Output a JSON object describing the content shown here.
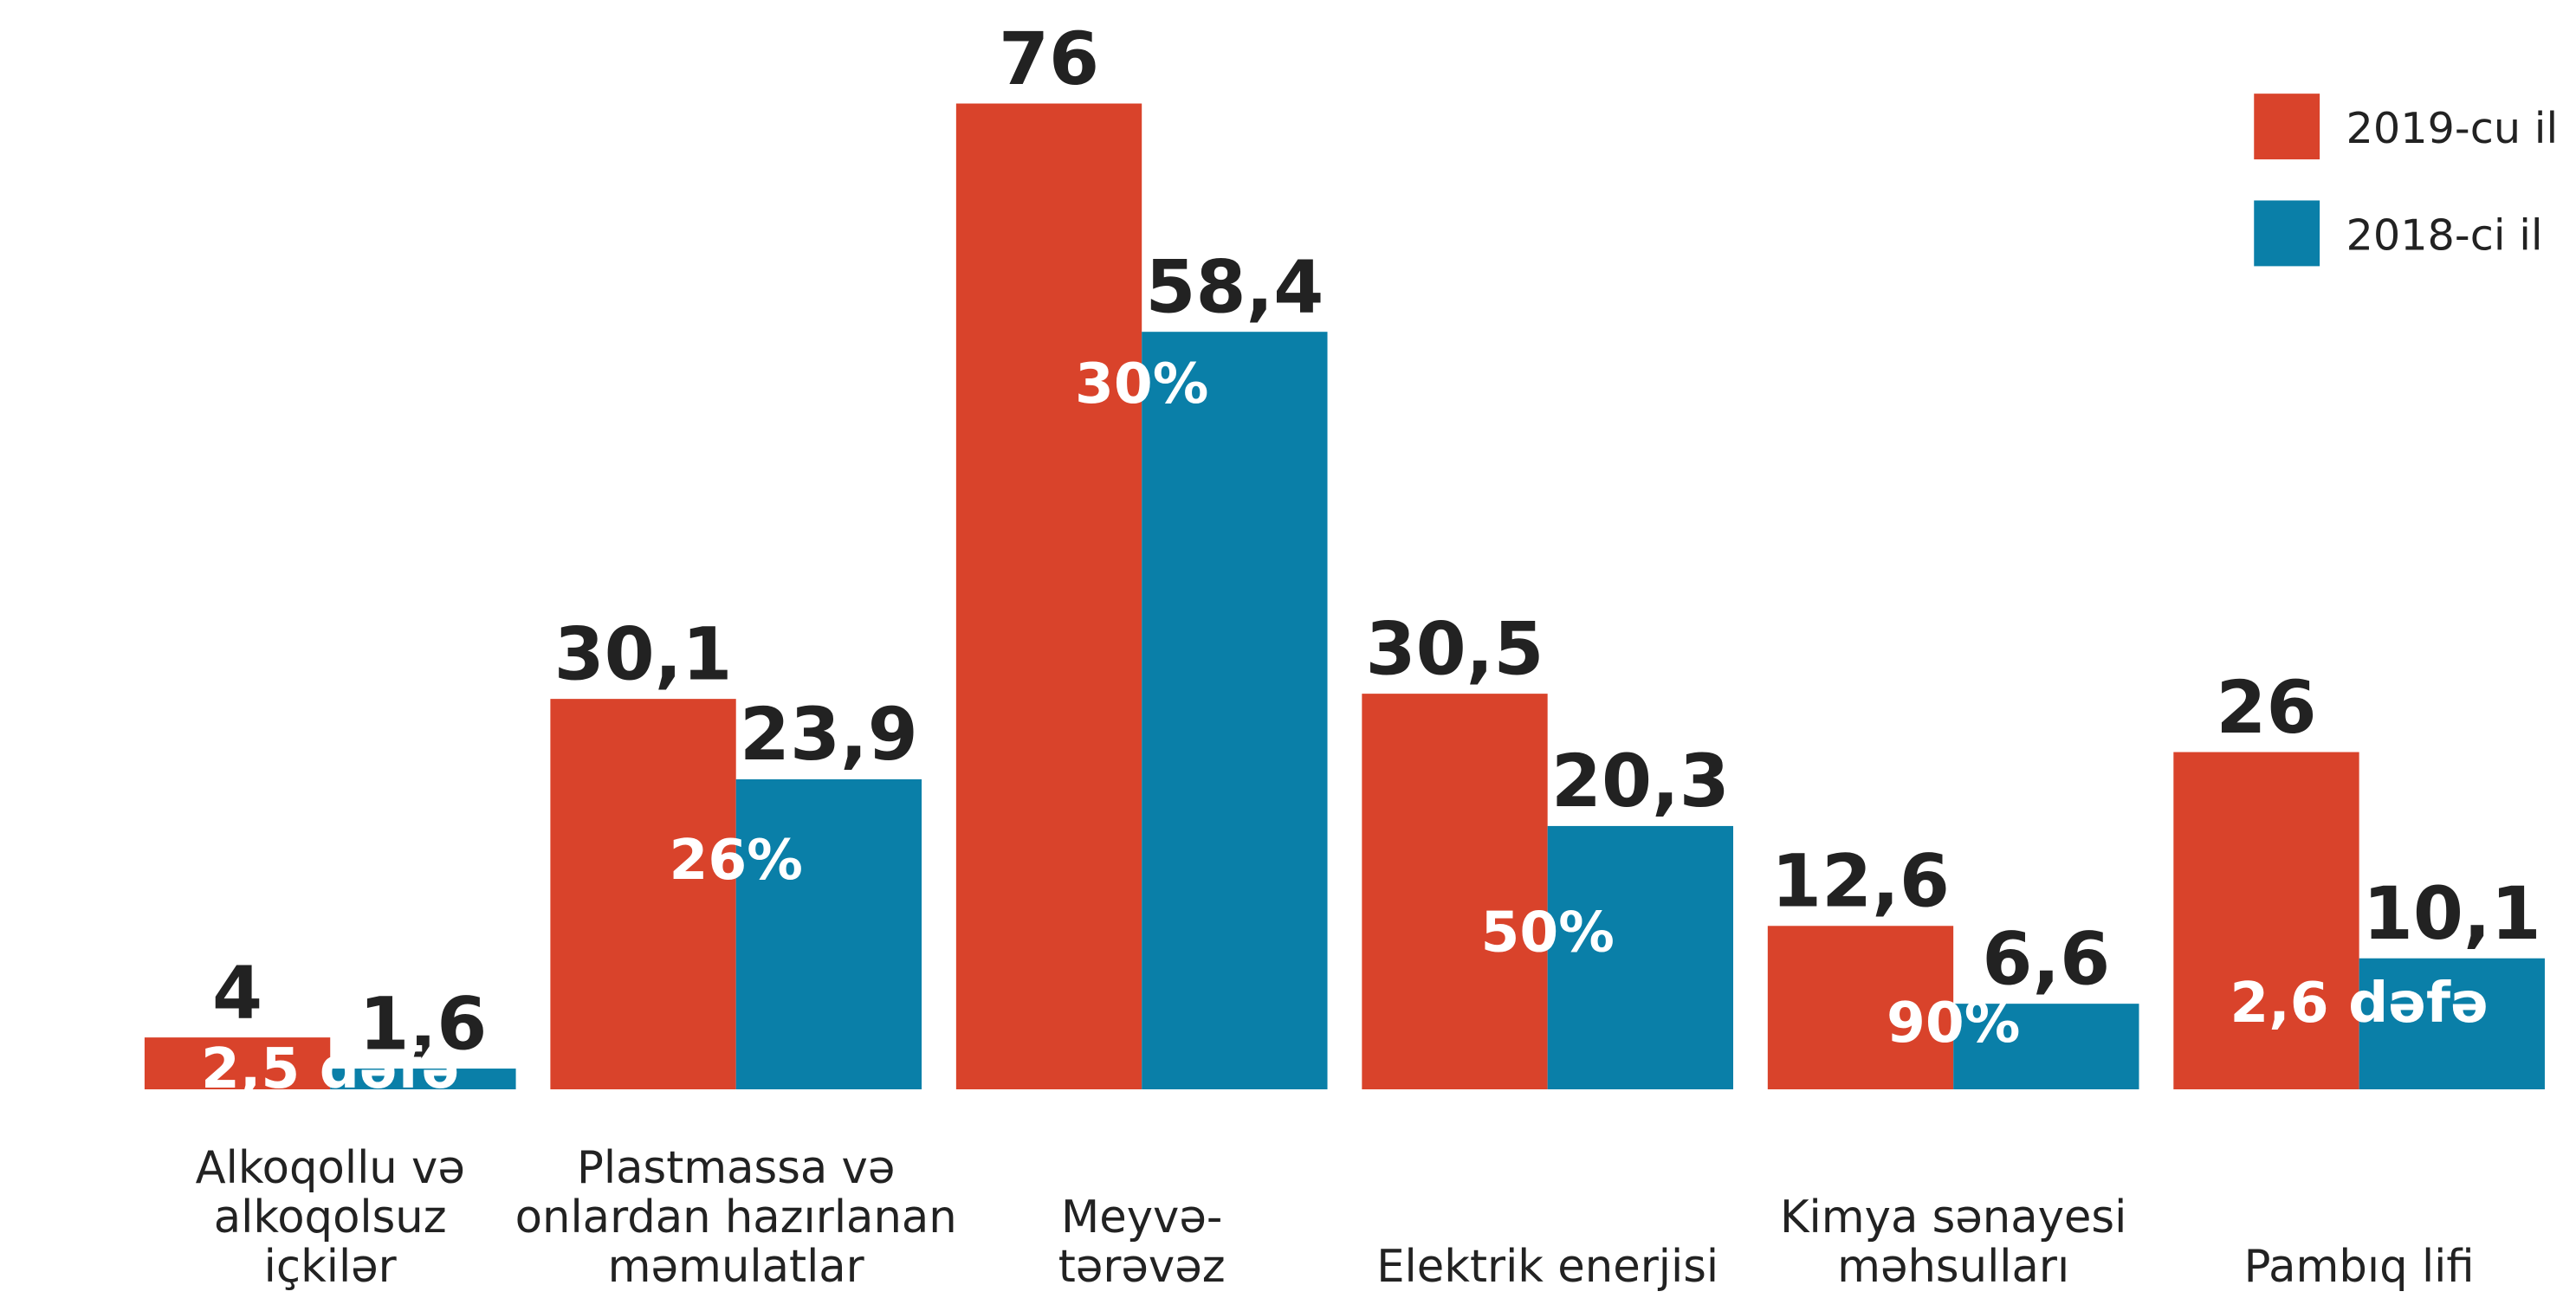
{
  "chart_data": {
    "type": "bar",
    "categories": [
      "Alkoqollu və\nalkoqolsuz\niçkilər",
      "Plastmassa və\nonlardan hazırlanan\nməmulatlar",
      "Meyvə-\ntərəvəz",
      "Elektrik enerjisi",
      "Kimya sənayesi\nməhsulları",
      "Pambıq lifi"
    ],
    "series": [
      {
        "name": "2019-cu il",
        "color": "#d9432b",
        "values": [
          4,
          30.1,
          76,
          30.5,
          12.6,
          26
        ],
        "value_labels": [
          "4",
          "30,1",
          "76",
          "30,5",
          "12,6",
          "26"
        ]
      },
      {
        "name": "2018-ci il",
        "color": "#0a7fa8",
        "values": [
          1.6,
          23.9,
          58.4,
          20.3,
          6.6,
          10.1
        ],
        "value_labels": [
          "1,6",
          "23,9",
          "58,4",
          "20,3",
          "6,6",
          "10,1"
        ]
      }
    ],
    "annotations": [
      "2,5 dəfə",
      "26%",
      "30%",
      "50%",
      "90%",
      "2,6 dəfə"
    ],
    "legend": "top-right"
  }
}
